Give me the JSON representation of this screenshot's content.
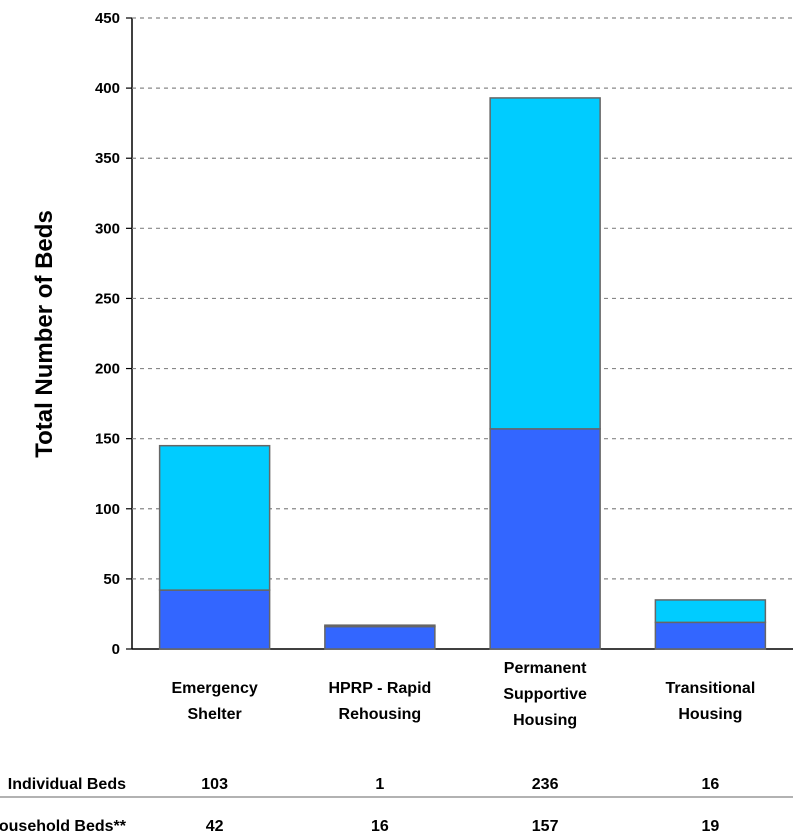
{
  "chart_data": {
    "type": "bar",
    "stacked": true,
    "ylabel": "Total Number of Beds",
    "ylim": [
      0,
      450
    ],
    "yticks": [
      0,
      50,
      100,
      150,
      200,
      250,
      300,
      350,
      400,
      450
    ],
    "grid": "dashed horizontal",
    "categories": [
      [
        "Emergency",
        "Shelter"
      ],
      [
        "HPRP - Rapid",
        "Rehousing"
      ],
      [
        "Permanent",
        "Supportive",
        "Housing"
      ],
      [
        "Transitional",
        "Housing"
      ]
    ],
    "series": [
      {
        "name": "Household Beds**",
        "color": "#3366ff",
        "values": [
          42,
          16,
          157,
          19
        ]
      },
      {
        "name": "Individual Beds",
        "color": "#00ccff",
        "values": [
          103,
          1,
          236,
          16
        ]
      }
    ],
    "table": {
      "rows": [
        {
          "label": "Individual Beds",
          "values": [
            "103",
            "1",
            "236",
            "16"
          ]
        },
        {
          "label": "Household Beds**",
          "values": [
            "42",
            "16",
            "157",
            "19"
          ]
        }
      ]
    }
  }
}
